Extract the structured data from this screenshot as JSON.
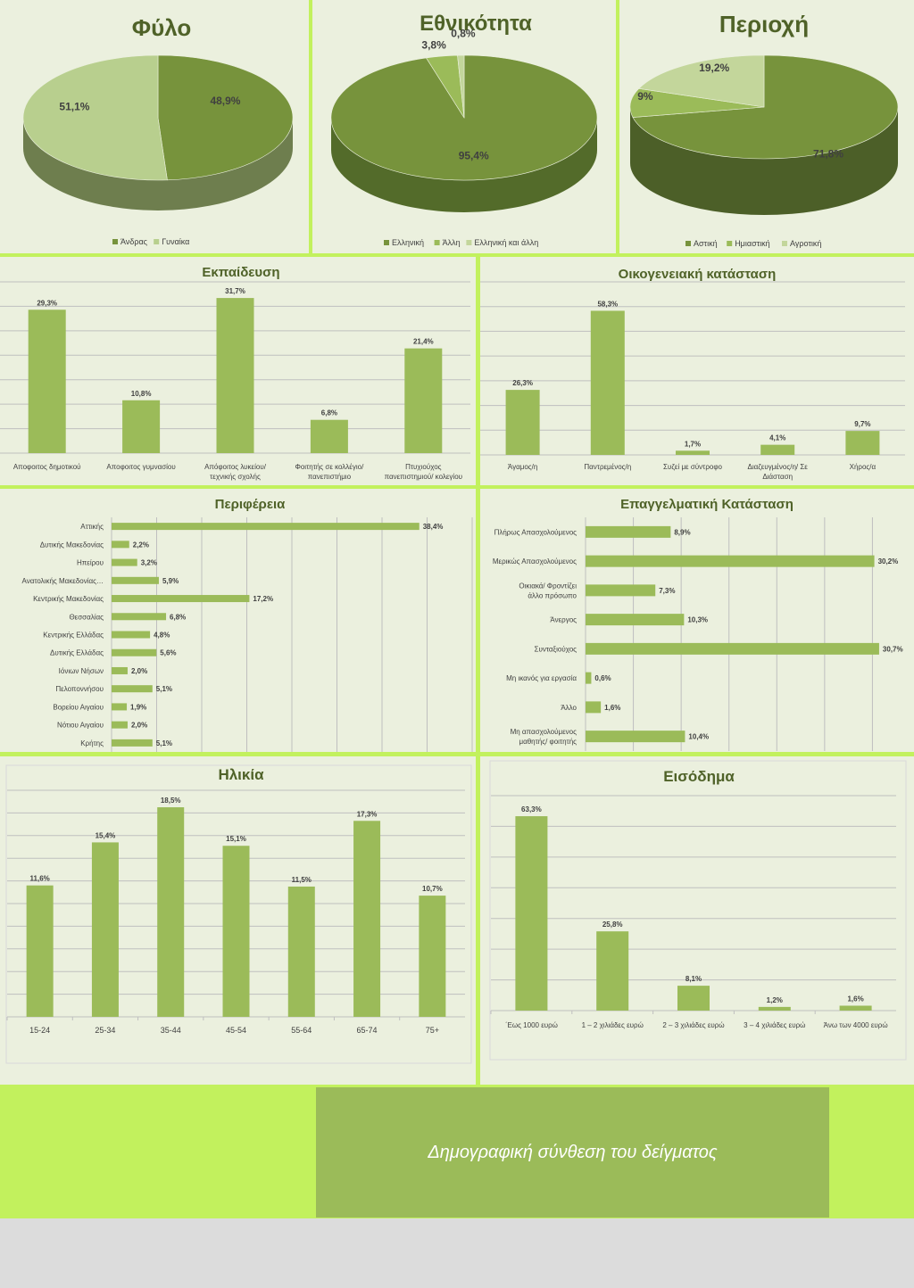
{
  "footer": {
    "title": "Δημογραφική σύνθεση του δείγματος"
  },
  "colors": {
    "dark": "#4f6228",
    "medium": "#77933c",
    "bar": "#9bbb59",
    "light": "#c3d69b",
    "gender_light": "#b8cf8e",
    "grid": "#bfbfbf",
    "text": "#404040"
  },
  "chart_data": [
    {
      "id": "gender",
      "type": "pie",
      "title": "Φύλο",
      "slices": [
        {
          "label": "Άνδρας",
          "value": 48.9,
          "display": "48,9%"
        },
        {
          "label": "Γυναίκα",
          "value": 51.1,
          "display": "51,1%"
        }
      ]
    },
    {
      "id": "ethnicity",
      "type": "pie",
      "title": "Εθνικότητα",
      "slices": [
        {
          "label": "Ελληνική",
          "value": 95.4,
          "display": "95,4%"
        },
        {
          "label": "Άλλη",
          "value": 3.8,
          "display": "3,8%"
        },
        {
          "label": "Ελληνική και άλλη",
          "value": 0.8,
          "display": "0,8%"
        }
      ]
    },
    {
      "id": "area",
      "type": "pie",
      "title": "Περιοχή",
      "slices": [
        {
          "label": "Αστική",
          "value": 71.8,
          "display": "71,8%"
        },
        {
          "label": "Ημιαστική",
          "value": 9,
          "display": "9%"
        },
        {
          "label": "Αγροτική",
          "value": 19.2,
          "display": "19,2%"
        }
      ]
    },
    {
      "id": "education",
      "type": "bar",
      "title": "Εκπαίδευση",
      "categories": [
        "Αποφοιτος δημοτικού",
        "Αποφοιτος γυμνασίου",
        "Απόφοιτος λυκείου/ τεχνικής σχολής",
        "Φοιτητής σε κολλέγιο/ πανεπιστήμιο",
        "Πτυχιούχος πανεπιστημιού/ κολεγίου"
      ],
      "values": [
        29.3,
        10.8,
        31.7,
        6.8,
        21.4
      ],
      "labels": [
        "29,3%",
        "10,8%",
        "31,7%",
        "6,8%",
        "21,4%"
      ],
      "ylim": [
        0,
        35
      ]
    },
    {
      "id": "marital",
      "type": "bar",
      "title": "Οικογενειακή κατάσταση",
      "categories": [
        "Άγαμος/η",
        "Παντρεμένος/η",
        "Συζεί με σύντροφο",
        "Διαζευγμένος/η/  Σε Διάσταση",
        "Χήρος/α"
      ],
      "values": [
        26.3,
        58.3,
        1.7,
        4.1,
        9.7
      ],
      "labels": [
        "26,3%",
        "58,3%",
        "1,7%",
        "4,1%",
        "9,7%"
      ],
      "ylim": [
        0,
        70
      ]
    },
    {
      "id": "region",
      "type": "bar",
      "orientation": "horizontal",
      "title": "Περιφέρεια",
      "categories": [
        "Αττικής",
        "Δυτικής Μακεδονίας",
        "Ηπείρου",
        "Ανατολικής Μακεδονίας…",
        "Κεντρικής Μακεδονίας",
        "Θεσσαλίας",
        "Κεντρικής Ελλάδας",
        "Δυτικής Ελλάδας",
        "Ιόνιων Νήσων",
        "Πελοποννήσου",
        "Βορείου Αιγαίου",
        "Νότιου Αιγαίου",
        "Κρήτης"
      ],
      "values": [
        38.4,
        2.2,
        3.2,
        5.9,
        17.2,
        6.8,
        4.8,
        5.6,
        2.0,
        5.1,
        1.9,
        2.0,
        5.1
      ],
      "labels": [
        "38,4%",
        "2,2%",
        "3,2%",
        "5,9%",
        "17,2%",
        "6,8%",
        "4,8%",
        "5,6%",
        "2,0%",
        "5,1%",
        "1,9%",
        "2,0%",
        "5,1%"
      ],
      "xlim": [
        0,
        45
      ]
    },
    {
      "id": "employment",
      "type": "bar",
      "orientation": "horizontal",
      "title": "Επαγγελματική Κατάσταση",
      "categories": [
        "Πλήρως Απασχολούμενος",
        "Μερικώς Απασχολούμενος",
        "Οικιακά/ Φροντίζει άλλο πρόσωπο",
        "Άνεργος",
        "Συνταξιούχος",
        "Μη ικανός για εργασία",
        "Άλλο",
        "Μη απασχολούμενος μαθητής/ φοιτητής"
      ],
      "values": [
        8.9,
        30.2,
        7.3,
        10.3,
        30.7,
        0.6,
        1.6,
        10.4
      ],
      "labels": [
        "8,9%",
        "30,2%",
        "7,3%",
        "10,3%",
        "30,7%",
        "0,6%",
        "1,6%",
        "10,4%"
      ],
      "xlim": [
        0,
        35
      ]
    },
    {
      "id": "age",
      "type": "bar",
      "title": "Ηλικία",
      "categories": [
        "15-24",
        "25-34",
        "35-44",
        "45-54",
        "55-64",
        "65-74",
        "75+"
      ],
      "values": [
        11.6,
        15.4,
        18.5,
        15.1,
        11.5,
        17.3,
        10.7
      ],
      "labels": [
        "11,6%",
        "15,4%",
        "18,5%",
        "15,1%",
        "11,5%",
        "17,3%",
        "10,7%"
      ],
      "ylim": [
        0,
        20
      ]
    },
    {
      "id": "income",
      "type": "bar",
      "title": "Εισόδημα",
      "categories": [
        "΄Εως 1000 ευρώ",
        "1 – 2 χιλιάδες ευρώ",
        "2 – 3 χιλιάδες ευρώ",
        "3 – 4 χιλιάδες ευρώ",
        "Άνω των 4000 ευρώ"
      ],
      "values": [
        63.3,
        25.8,
        8.1,
        1.2,
        1.6
      ],
      "labels": [
        "63,3%",
        "25,8%",
        "8,1%",
        "1,2%",
        "1,6%"
      ],
      "ylim": [
        0,
        70
      ]
    }
  ]
}
